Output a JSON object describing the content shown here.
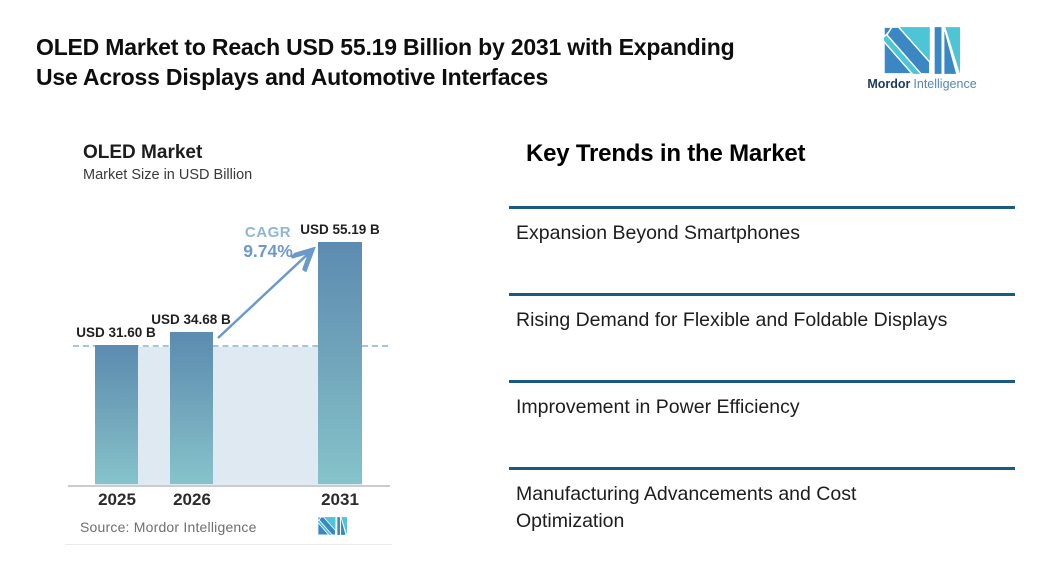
{
  "header": {
    "title_lines": [
      "OLED Market to Reach USD 55.19 Billion by 2031 with Expanding",
      "Use Across Displays and Automotive Interfaces"
    ],
    "brand": {
      "name_bold": "Mordor",
      "name_light": "Intelligence"
    }
  },
  "chart": {
    "title": "OLED Market",
    "subtitle": "Market Size in USD Billion",
    "source": "Source: Mordor Intelligence",
    "cagr": {
      "label": "CAGR",
      "value": "9.74%"
    },
    "bars": [
      {
        "year": "2025",
        "label": "USD 31.60 B"
      },
      {
        "year": "2026",
        "label": "USD 34.68 B"
      },
      {
        "year": "2031",
        "label": "USD 55.19 B"
      }
    ]
  },
  "chart_data": {
    "type": "bar",
    "title": "OLED Market",
    "subtitle": "Market Size in USD Billion",
    "categories": [
      "2025",
      "2026",
      "2031"
    ],
    "values": [
      31.6,
      34.68,
      55.19
    ],
    "value_labels": [
      "USD 31.60 B",
      "USD 34.68 B",
      "USD 55.19 B"
    ],
    "unit": "USD Billion",
    "annotations": [
      "CAGR 9.74%"
    ],
    "reference_line": {
      "style": "dashed",
      "at_value": 31.6,
      "note": "dashed line at 2025 level with shaded band to baseline"
    },
    "source": "Source: Mordor Intelligence",
    "legend": "none",
    "grid": "off"
  },
  "trends": {
    "heading": "Key Trends in the Market",
    "items": [
      "Expansion Beyond Smartphones",
      "Rising Demand for Flexible and Foldable Displays",
      "Improvement in Power Efficiency",
      "Manufacturing Advancements and Cost Optimization"
    ]
  },
  "colors": {
    "accent_line": "#1a5a80",
    "bar_top": "#5c8bb0",
    "bar_bottom": "#86c3ca",
    "band_fill": "#dfe9f2",
    "dashed_line": "#a6c4dc",
    "arrow": "#6b9aca",
    "cagr_label": "#8fb6d8",
    "logo_blue": "#3a87c4",
    "logo_teal": "#4ec5d6"
  }
}
